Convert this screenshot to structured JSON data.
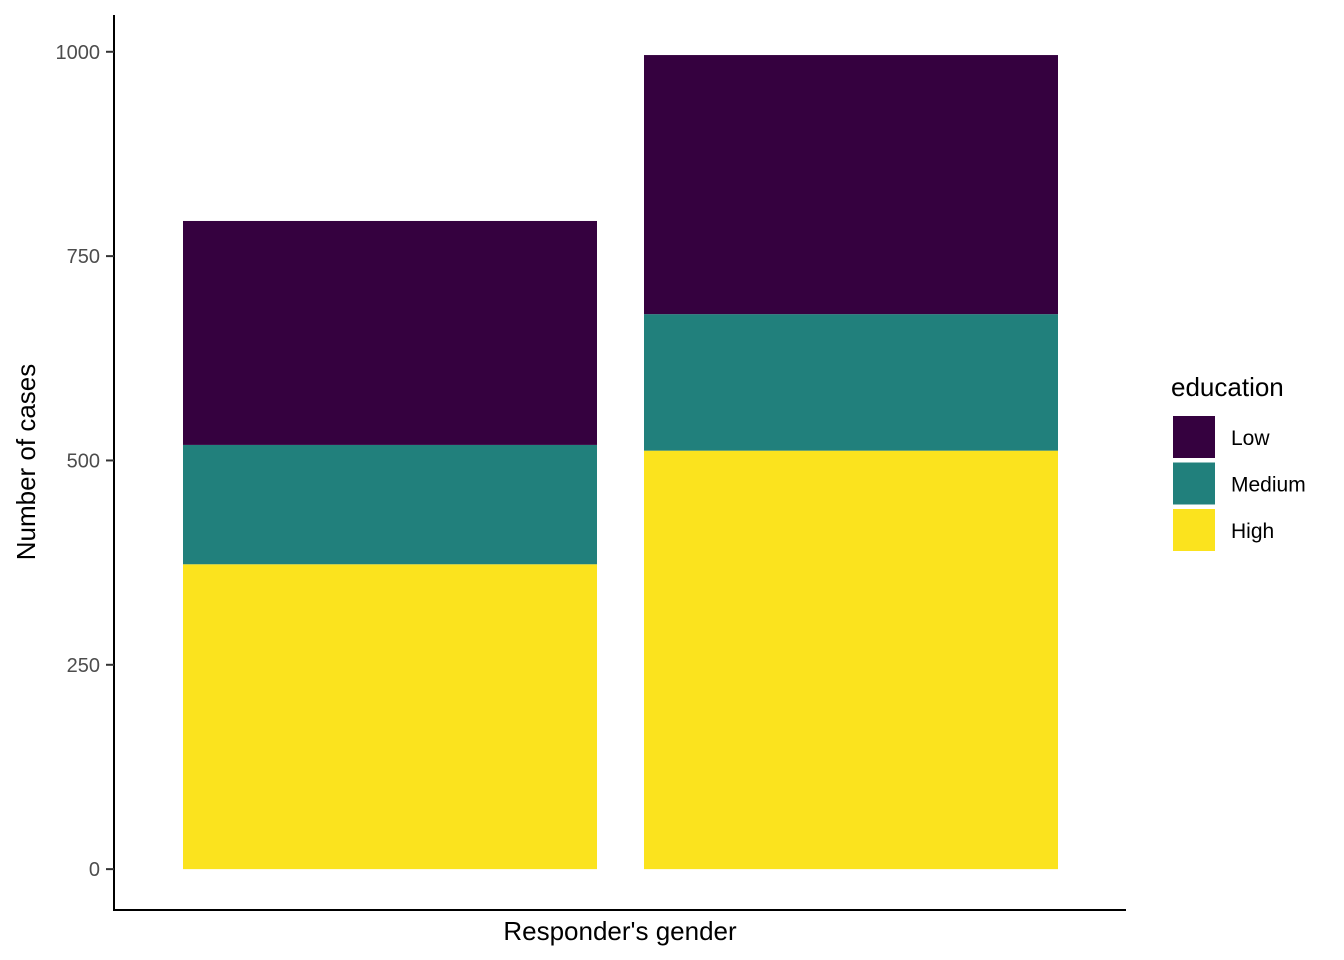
{
  "chart_data": {
    "type": "bar",
    "stacked": true,
    "categories": [
      "",
      ""
    ],
    "series": [
      {
        "name": "Low",
        "color": "#35013F",
        "values": [
          274,
          317
        ]
      },
      {
        "name": "Medium",
        "color": "#21807C",
        "values": [
          146,
          167
        ]
      },
      {
        "name": "High",
        "color": "#FBE31E",
        "values": [
          373,
          512
        ]
      }
    ],
    "title": "",
    "xlabel": "Responder's gender",
    "ylabel": "Number of cases",
    "ylim": [
      -50,
      1045
    ],
    "yticks": [
      0,
      250,
      500,
      750,
      1000
    ],
    "grid": false,
    "legend": {
      "title": "education",
      "placement": "right"
    }
  }
}
